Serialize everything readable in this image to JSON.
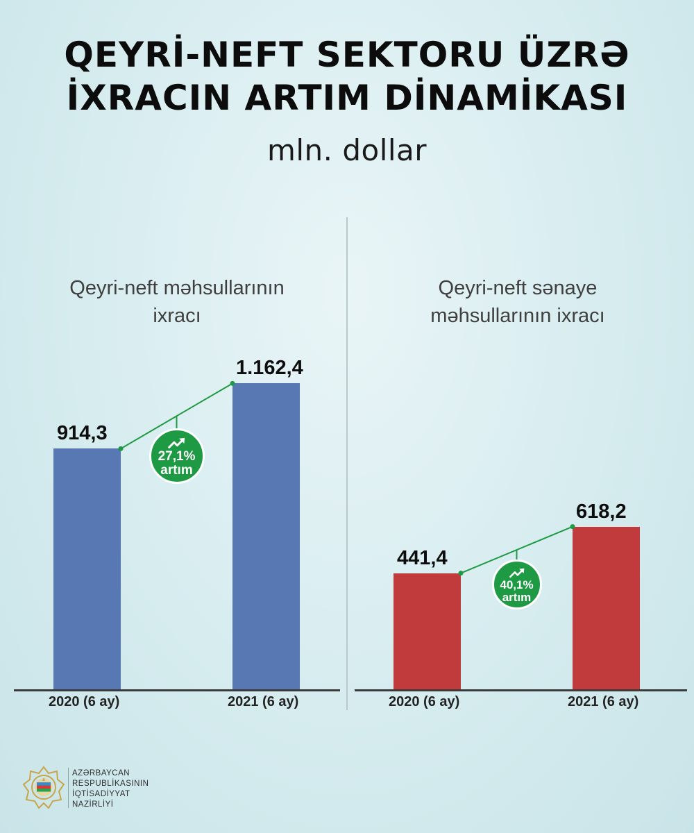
{
  "header": {
    "title_line1": "QEYRİ-NEFT SEKTORU ÜZRƏ",
    "title_line2": "İXRACIN ARTIM DİNAMİKASI",
    "unit": "mln. dollar"
  },
  "chart_data": [
    {
      "type": "bar",
      "title": "Qeyri-neft məhsullarının ixracı",
      "title_lines": [
        "Qeyri-neft məhsullarının",
        "ixracı"
      ],
      "categories": [
        "2020 (6 ay)",
        "2021 (6 ay)"
      ],
      "values": [
        914.3,
        1162.4
      ],
      "value_labels": [
        "914,3",
        "1.162,4"
      ],
      "ylim": [
        0,
        1200
      ],
      "bar_color": "#5878b4",
      "growth": {
        "percent": "27,1%",
        "word": "artım",
        "color": "#1f9a44"
      }
    },
    {
      "type": "bar",
      "title": "Qeyri-neft sənaye məhsullarının ixracı",
      "title_lines": [
        "Qeyri-neft sənaye",
        "məhsullarının ixracı"
      ],
      "categories": [
        "2020 (6 ay)",
        "2021 (6 ay)"
      ],
      "values": [
        441.4,
        618.2
      ],
      "value_labels": [
        "441,4",
        "618,2"
      ],
      "ylim": [
        0,
        1200
      ],
      "bar_color": "#c23b3c",
      "growth": {
        "percent": "40,1%",
        "word": "artım",
        "color": "#1f9a44"
      }
    }
  ],
  "footer": {
    "org_lines": [
      "AZƏRBAYCAN",
      "RESPUBLİKASININ",
      "İQTİSADİYYAT",
      "NAZİRLİYİ"
    ]
  }
}
